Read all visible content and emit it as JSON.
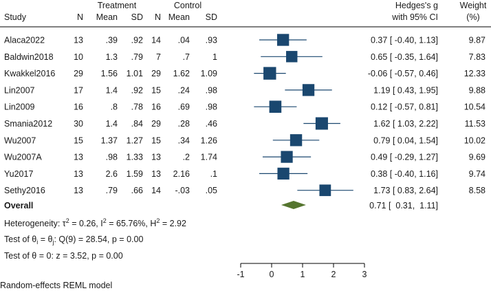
{
  "chart_data": {
    "type": "forest",
    "x_axis": {
      "range": [
        -1,
        3
      ],
      "ticks": [
        -1,
        0,
        1,
        2,
        3
      ],
      "tick_labels": [
        "-1",
        "0",
        "1",
        "2",
        "3"
      ]
    },
    "headers": {
      "treatment": "Treatment",
      "control": "Control",
      "study": "Study",
      "n_t": "N",
      "mean_t": "Mean",
      "sd_t": "SD",
      "n_c": "N",
      "mean_c": "Mean",
      "sd_c": "SD",
      "effect_line1": "Hedges's g",
      "effect_line2": "with 95% CI",
      "weight_line1": "Weight",
      "weight_line2": "(%)"
    },
    "studies": [
      {
        "study": "Alaca2022",
        "n_t": "13",
        "mean_t": ".39",
        "sd_t": ".92",
        "n_c": "14",
        "mean_c": ".04",
        "sd_c": ".93",
        "g": 0.37,
        "lo": -0.4,
        "hi": 1.13,
        "ci_text": "0.37 [ -0.40,  1.13]",
        "weight": 9.87,
        "weight_text": "9.87"
      },
      {
        "study": "Baldwin2018",
        "n_t": "10",
        "mean_t": "1.3",
        "sd_t": ".79",
        "n_c": "7",
        "mean_c": ".7",
        "sd_c": "1",
        "g": 0.65,
        "lo": -0.35,
        "hi": 1.64,
        "ci_text": "0.65 [ -0.35,  1.64]",
        "weight": 7.83,
        "weight_text": "7.83"
      },
      {
        "study": "Kwakkel2016",
        "n_t": "29",
        "mean_t": "1.56",
        "sd_t": "1.01",
        "n_c": "29",
        "mean_c": "1.62",
        "sd_c": "1.09",
        "g": -0.06,
        "lo": -0.57,
        "hi": 0.46,
        "ci_text": "-0.06 [ -0.57,  0.46]",
        "weight": 12.33,
        "weight_text": "12.33"
      },
      {
        "study": "Lin2007",
        "n_t": "17",
        "mean_t": "1.4",
        "sd_t": ".92",
        "n_c": "15",
        "mean_c": ".24",
        "sd_c": ".98",
        "g": 1.19,
        "lo": 0.43,
        "hi": 1.95,
        "ci_text": "1.19 [  0.43,  1.95]",
        "weight": 9.88,
        "weight_text": "9.88"
      },
      {
        "study": "Lin2009",
        "n_t": "16",
        "mean_t": ".8",
        "sd_t": ".78",
        "n_c": "16",
        "mean_c": ".69",
        "sd_c": ".98",
        "g": 0.12,
        "lo": -0.57,
        "hi": 0.81,
        "ci_text": "0.12 [ -0.57,  0.81]",
        "weight": 10.54,
        "weight_text": "10.54"
      },
      {
        "study": "Smania2012",
        "n_t": "30",
        "mean_t": "1.4",
        "sd_t": ".84",
        "n_c": "29",
        "mean_c": ".28",
        "sd_c": ".46",
        "g": 1.62,
        "lo": 1.03,
        "hi": 2.22,
        "ci_text": "1.62 [  1.03,  2.22]",
        "weight": 11.53,
        "weight_text": "11.53"
      },
      {
        "study": "Wu2007",
        "n_t": "15",
        "mean_t": "1.37",
        "sd_t": "1.27",
        "n_c": "15",
        "mean_c": ".34",
        "sd_c": "1.26",
        "g": 0.79,
        "lo": 0.04,
        "hi": 1.54,
        "ci_text": "0.79 [  0.04,  1.54]",
        "weight": 10.02,
        "weight_text": "10.02"
      },
      {
        "study": "Wu2007A",
        "n_t": "13",
        "mean_t": ".98",
        "sd_t": "1.33",
        "n_c": "13",
        "mean_c": ".2",
        "sd_c": "1.74",
        "g": 0.49,
        "lo": -0.29,
        "hi": 1.27,
        "ci_text": "0.49 [ -0.29,  1.27]",
        "weight": 9.69,
        "weight_text": "9.69"
      },
      {
        "study": "Yu2017",
        "n_t": "13",
        "mean_t": "2.6",
        "sd_t": "1.59",
        "n_c": "13",
        "mean_c": "2.16",
        "sd_c": ".1",
        "g": 0.38,
        "lo": -0.4,
        "hi": 1.16,
        "ci_text": "0.38 [ -0.40,  1.16]",
        "weight": 9.74,
        "weight_text": "9.74"
      },
      {
        "study": "Sethy2016",
        "n_t": "13",
        "mean_t": ".79",
        "sd_t": ".66",
        "n_c": "14",
        "mean_c": "-.03",
        "sd_c": ".05",
        "g": 1.73,
        "lo": 0.83,
        "hi": 2.64,
        "ci_text": "1.73 [  0.83,  2.64]",
        "weight": 8.58,
        "weight_text": "8.58"
      }
    ],
    "overall": {
      "label": "Overall",
      "g": 0.71,
      "lo": 0.31,
      "hi": 1.11,
      "ci_text": "0.71 [  0.31,  1.11]"
    },
    "notes": {
      "heterogeneity": {
        "prefix": "Heterogeneity: τ",
        "tau_sup": "2",
        "mid1": " = 0.26, I",
        "i_sup": "2",
        "mid2": " = 65.76%, H",
        "h_sup": "2",
        "tail": " = 2.92"
      },
      "test_theta_equal": {
        "prefix": "Test of θ",
        "sub1": "i",
        "mid": " = θ",
        "sub2": "j",
        "tail": ": Q(9) = 28.54, p = 0.00"
      },
      "test_theta_zero": "Test of θ = 0: z = 3.52, p = 0.00",
      "model": "Random-effects REML model"
    },
    "colors": {
      "marker": "#1a476f",
      "ci_line": "#1a476f",
      "diamond": "#55752f",
      "axis": "#000000",
      "text": "#1a1a1a"
    }
  }
}
